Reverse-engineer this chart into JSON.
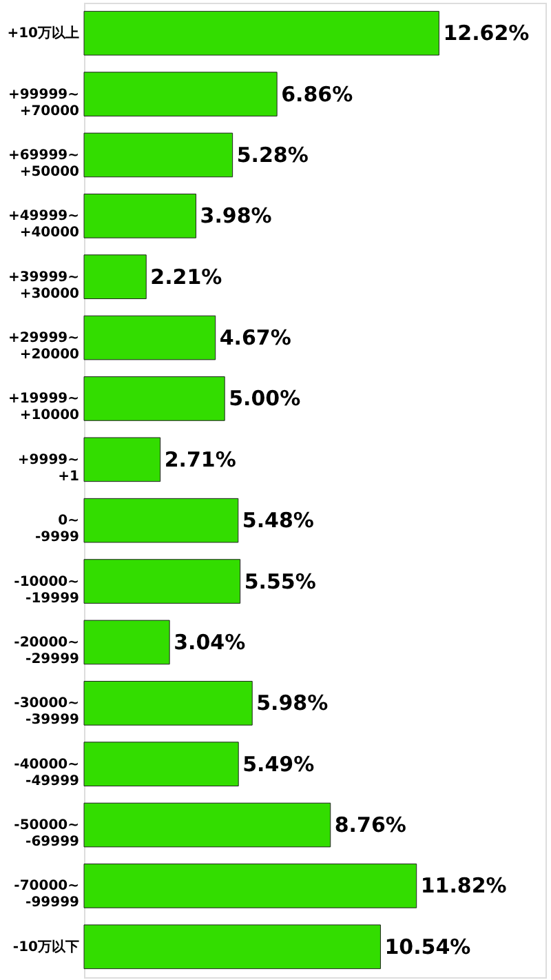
{
  "chart_data": {
    "type": "bar",
    "orientation": "horizontal",
    "categories": [
      "+10万以上",
      "+99999~\n+70000",
      "+69999~\n+50000",
      "+49999~\n+40000",
      "+39999~\n+30000",
      "+29999~\n+20000",
      "+19999~\n+10000",
      "+9999~\n+1",
      "0~\n-9999",
      "-10000~\n-19999",
      "-20000~\n-29999",
      "-30000~\n-39999",
      "-40000~\n-49999",
      "-50000~\n-69999",
      "-70000~\n-99999",
      "-10万以下"
    ],
    "values": [
      12.62,
      6.86,
      5.28,
      3.98,
      2.21,
      4.67,
      5.0,
      2.71,
      5.48,
      5.55,
      3.04,
      5.98,
      5.49,
      8.76,
      11.82,
      10.54
    ],
    "value_labels": [
      "12.62%",
      "6.86%",
      "5.28%",
      "3.98%",
      "2.21%",
      "4.67%",
      "5.00%",
      "2.71%",
      "5.48%",
      "5.55%",
      "3.04%",
      "5.98%",
      "5.49%",
      "8.76%",
      "11.82%",
      "10.54%"
    ],
    "color": "#33dd00",
    "tick_labels": "y"
  }
}
